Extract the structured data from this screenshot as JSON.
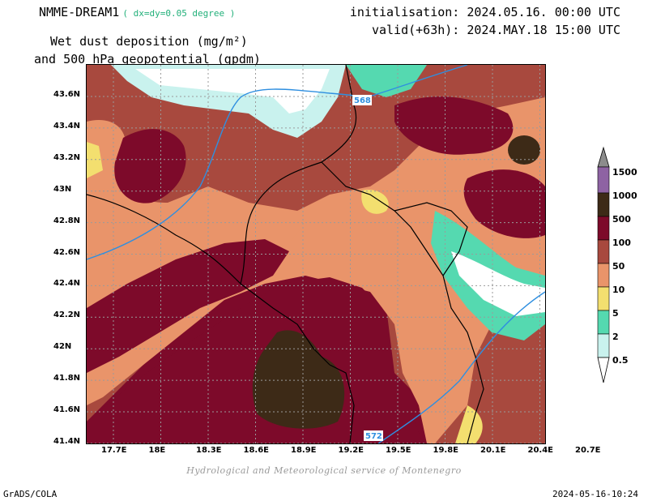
{
  "header": {
    "model": "NMME-DREAM1",
    "resolution": "( dx=dy=0.05 degree )",
    "initialisation": "initialisation: 2024.05.16. 00:00 UTC",
    "valid": "valid(+63h): 2024.MAY.18 15:00 UTC",
    "title_line1": "Wet dust deposition (mg/m²)",
    "title_line2": "and 500 hPa geopotential (gpdm)"
  },
  "axes": {
    "y_ticks": [
      "43.6N",
      "43.4N",
      "43.2N",
      "43N",
      "42.8N",
      "42.6N",
      "42.4N",
      "42.2N",
      "42N",
      "41.8N",
      "41.6N",
      "41.4N"
    ],
    "x_ticks": [
      "17.7E",
      "18E",
      "18.3E",
      "18.6E",
      "18.9E",
      "19.2E",
      "19.5E",
      "19.8E",
      "20.1E",
      "20.4E",
      "20.7E"
    ]
  },
  "contours": {
    "label_568": "568",
    "label_572": "572",
    "color": "#2f8fe0"
  },
  "legend": {
    "levels": [
      "1500",
      "1000",
      "500",
      "100",
      "50",
      "10",
      "5",
      "2",
      "0.5"
    ],
    "colors": {
      "above1500": "#8c8c8c",
      "c1000": "#8e63a3",
      "c500": "#3d2a17",
      "c100": "#7d0a2a",
      "c50": "#a8493e",
      "c10": "#e9946a",
      "c5": "#f3df6f",
      "c2": "#55d9b0",
      "c05": "#c9f2ee"
    }
  },
  "footer": {
    "credit": "Hydrological and Meteorological service of Montenegro",
    "software": "GrADS/COLA",
    "timestamp": "2024-05-16-10:24"
  }
}
